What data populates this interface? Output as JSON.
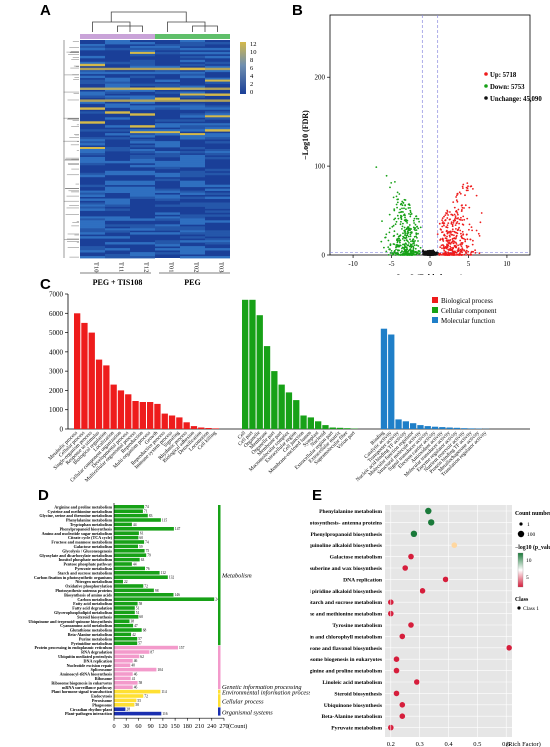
{
  "panel_labels": {
    "a": "A",
    "b": "B",
    "c": "C",
    "d": "D",
    "e": "E"
  },
  "colors": {
    "red": "#ee1c1c",
    "green": "#17a117",
    "blue": "#1f7fc8",
    "pink": "#f39acb",
    "yellow": "#ffe033",
    "navy": "#1a2fb0",
    "heat_low": "#1a3f98",
    "heat_mid": "#2f6fc0",
    "heat_high": "#d4b94a"
  },
  "heatmap": {
    "groups": [
      "PEG + TIS108",
      "PEG"
    ],
    "samples": [
      "T10",
      "T11",
      "T12",
      "T01",
      "T02",
      "T03"
    ],
    "colorbar_ticks": [
      "12",
      "10",
      "8",
      "6",
      "4",
      "2",
      "0"
    ]
  },
  "chart_data": [
    {
      "type": "scatter",
      "panel": "B",
      "xlabel": "Log2 (Fold change)",
      "ylabel": "−Log10 (FDR)",
      "xticks": [
        "-10",
        "-5",
        "0",
        "5",
        "10"
      ],
      "yticks": [
        "0",
        "100",
        "200"
      ],
      "xlim": [
        -13,
        13
      ],
      "ylim": [
        0,
        270
      ],
      "series": [
        {
          "name": "Up: 5718",
          "count": 5718
        },
        {
          "name": "Down: 5753",
          "count": 5753
        },
        {
          "name": "Unchange: 45,090",
          "count": 45090
        }
      ]
    },
    {
      "type": "bar",
      "panel": "C",
      "yticks": [
        "0",
        "1000",
        "2000",
        "3000",
        "4000",
        "5000",
        "6000",
        "7000"
      ],
      "ylim": [
        0,
        7000
      ],
      "series": [
        {
          "name": "Biological process",
          "categories": [
            "Metabolic process",
            "Cellular process",
            "Single-organism process",
            "Response to stimulus",
            "Biological regulation",
            "Localization",
            "Cellular component organization",
            "Developmental process",
            "Multicellular organismal process",
            "Reproduction",
            "Multi-organism process",
            "Growth",
            "Reproductive process",
            "Immune system process",
            "Signaling",
            "Rhythmic process",
            "Biological adhesion",
            "Detoxification",
            "Locomotion",
            "Cell killing"
          ],
          "values": [
            6000,
            5500,
            5000,
            3600,
            3300,
            2300,
            2000,
            1800,
            1450,
            1400,
            1400,
            1300,
            800,
            700,
            600,
            350,
            150,
            80,
            50,
            30
          ]
        },
        {
          "name": "Cellular component",
          "categories": [
            "Cell",
            "Cell part",
            "Organelle",
            "Membrane",
            "Organelle part",
            "Membrane part",
            "Macromolecular complex",
            "Extracellular region",
            "Cell junction",
            "Membrane-enclosed lumen",
            "Symplast",
            "Nucleoid",
            "Extracellular region part",
            "Extracellular matrix",
            "Supramolecular fiber",
            "Virion part"
          ],
          "values": [
            6700,
            6700,
            5900,
            4300,
            3000,
            2300,
            1900,
            1500,
            700,
            600,
            400,
            200,
            80,
            60,
            40,
            20
          ]
        },
        {
          "name": "Molecular function",
          "categories": [
            "Binding",
            "Catalytic activity",
            "Transporter activity",
            "Nucleic acid binding TF activity",
            "Molecular function regulator",
            "Structural molecule activity",
            "Signal transducer activity",
            "Electron carrier activity",
            "Antioxidant activity",
            "Molecular transducer activity",
            "Enzyme regulator activity",
            "Nutrient reservoir activity",
            "Protein binding TF activity",
            "Metallochaperone activity",
            "Translation regulator activity"
          ],
          "values": [
            5200,
            4900,
            500,
            400,
            300,
            200,
            150,
            120,
            100,
            80,
            60,
            40,
            30,
            20,
            10
          ]
        }
      ]
    },
    {
      "type": "bar",
      "panel": "D",
      "orientation": "horizontal",
      "xlabel": "(Count)",
      "xticks": [
        "0",
        "30",
        "60",
        "90",
        "120",
        "150",
        "180",
        "210",
        "240",
        "270"
      ],
      "xlim": [
        0,
        270
      ],
      "class_labels": [
        "Metabolism",
        "Genetic information processing",
        "Environmental information processing",
        "Cellular process",
        "Organismal systems"
      ],
      "rows": [
        {
          "label": "Arginine and proline metabolism",
          "value": 74,
          "class": 0
        },
        {
          "label": "Cysteine and methionine metabolism",
          "value": 71,
          "class": 0
        },
        {
          "label": "Glycine, serine and threonine metabolism",
          "value": 83,
          "class": 0
        },
        {
          "label": "Phenylalanine metabolism",
          "value": 115,
          "class": 0
        },
        {
          "label": "Tryptophan metabolism",
          "value": 44,
          "class": 0
        },
        {
          "label": "Phenylpropanoid biosynthesis",
          "value": 147,
          "class": 0
        },
        {
          "label": "Amino and nucleotide sugar metabolism",
          "value": 61,
          "class": 0
        },
        {
          "label": "Citrate cycle (TCA cycle)",
          "value": 60,
          "class": 0
        },
        {
          "label": "Fructose and mannose metabolism",
          "value": 74,
          "class": 0
        },
        {
          "label": "Galactose metabolism",
          "value": 59,
          "class": 0
        },
        {
          "label": "Glycolysis / Gluconeogenesis",
          "value": 75,
          "class": 0
        },
        {
          "label": "Glyoxylate and dicarboxylate metabolism",
          "value": 79,
          "class": 0
        },
        {
          "label": "Inositol phosphate metabolism",
          "value": 63,
          "class": 0
        },
        {
          "label": "Pentose phosphate pathway",
          "value": 44,
          "class": 0
        },
        {
          "label": "Pyruvate metabolism",
          "value": 76,
          "class": 0
        },
        {
          "label": "Starch and sucrose metabolism",
          "value": 112,
          "class": 0
        },
        {
          "label": "Carbon fixation in photosynthetic organisms",
          "value": 132,
          "class": 0
        },
        {
          "label": "Nitrogen metabolism",
          "value": 22,
          "class": 0
        },
        {
          "label": "Oxidative phosphorylation",
          "value": 72,
          "class": 0
        },
        {
          "label": "Photosynthesis-antenna proteins",
          "value": 98,
          "class": 0
        },
        {
          "label": "Biosynthesis of amino acids",
          "value": 146,
          "class": 0
        },
        {
          "label": "Carbon metabolism",
          "value": 246,
          "class": 0
        },
        {
          "label": "Fatty acid metabolism",
          "value": 58,
          "class": 0
        },
        {
          "label": "Fatty acid degradation",
          "value": 51,
          "class": 0
        },
        {
          "label": "Glycerophospholipid metabolism",
          "value": 51,
          "class": 0
        },
        {
          "label": "Steroid biosynthesis",
          "value": 60,
          "class": 0
        },
        {
          "label": "Ubiquinone and terpenoid-quinone biosynthesis",
          "value": 38,
          "class": 0
        },
        {
          "label": "Cyanoamino acid metabolism",
          "value": 47,
          "class": 0
        },
        {
          "label": "Glutathione metabolism",
          "value": 68,
          "class": 0
        },
        {
          "label": "Beta-Alanine metabolism",
          "value": 42,
          "class": 0
        },
        {
          "label": "Purine metabolism",
          "value": 57,
          "class": 0
        },
        {
          "label": "Pyrimidine metabolism",
          "value": 57,
          "class": 0
        },
        {
          "label": "Protein processing in endoplasmic reticulum",
          "value": 157,
          "class": 1
        },
        {
          "label": "RNA degradation",
          "value": 87,
          "class": 1
        },
        {
          "label": "Ubiquitin mediated proteolysis",
          "value": 62,
          "class": 1
        },
        {
          "label": "DNA replication",
          "value": 46,
          "class": 1
        },
        {
          "label": "Nucleotide excision repair",
          "value": 40,
          "class": 1
        },
        {
          "label": "Spliceosome",
          "value": 104,
          "class": 1
        },
        {
          "label": "Aminoacyl-tRNA biosynthesis",
          "value": 46,
          "class": 1
        },
        {
          "label": "Ribosome",
          "value": 41,
          "class": 1
        },
        {
          "label": "Ribosome biogenesis in eukaryotes",
          "value": 58,
          "class": 1
        },
        {
          "label": "mRNA surveillance pathway",
          "value": 46,
          "class": 1
        },
        {
          "label": "Plant hormone signal transduction",
          "value": 114,
          "class": 2
        },
        {
          "label": "Endocytosis",
          "value": 72,
          "class": 3
        },
        {
          "label": "Peroxisome",
          "value": 55,
          "class": 3
        },
        {
          "label": "Phagosome",
          "value": 50,
          "class": 3
        },
        {
          "label": "Circadian rhythm-plant",
          "value": 28,
          "class": 4
        },
        {
          "label": "Plant-pathogen interaction",
          "value": 116,
          "class": 4
        }
      ]
    },
    {
      "type": "scatter",
      "panel": "E",
      "xlabel": "(Rich Factor)",
      "xticks": [
        "0.2",
        "0.3",
        "0.4",
        "0.5",
        "0.6"
      ],
      "xlim": [
        0.18,
        0.62
      ],
      "legend_count_title": "Count number",
      "legend_count_items": [
        "1",
        "100"
      ],
      "legend_color_title": "−log10 (p_value)",
      "legend_color_ticks": [
        "10",
        "5"
      ],
      "legend_class_title": "Class",
      "legend_class_items": [
        "Class 1"
      ],
      "points": [
        {
          "label": "Phenylalanine metabolism",
          "x": 0.33,
          "neglogp": 18
        },
        {
          "label": "Photosynthesis- antenna proteins",
          "x": 0.34,
          "neglogp": 17
        },
        {
          "label": "Phenylpropanoid biosynthesis",
          "x": 0.28,
          "neglogp": 16
        },
        {
          "label": "Isoquinoline alkaloid biosynthesis",
          "x": 0.42,
          "neglogp": 4
        },
        {
          "label": "Galactose metabolism",
          "x": 0.27,
          "neglogp": 5
        },
        {
          "label": "Cutin,suberine and wax biosynthesis",
          "x": 0.25,
          "neglogp": 4
        },
        {
          "label": "DNA replication",
          "x": 0.39,
          "neglogp": 5
        },
        {
          "label": "Tropane,piperidine and piridine alkaloid biosynthesis",
          "x": 0.31,
          "neglogp": 4
        },
        {
          "label": "Starch and sucrose metabolism",
          "x": 0.2,
          "neglogp": 5
        },
        {
          "label": "Cysteine and methionine metabolism",
          "x": 0.2,
          "neglogp": 5
        },
        {
          "label": "Tyrosine metabolism",
          "x": 0.27,
          "neglogp": 5
        },
        {
          "label": "Porphyrin and chlorophyll metabolism",
          "x": 0.24,
          "neglogp": 5
        },
        {
          "label": "Flavone and flavonol biosynthesis",
          "x": 0.61,
          "neglogp": 5
        },
        {
          "label": "Ribosome biogenesis in eukaryotes",
          "x": 0.22,
          "neglogp": 5
        },
        {
          "label": "Arginine and proline metabolism",
          "x": 0.22,
          "neglogp": 5
        },
        {
          "label": "Linoleic acid metabolism",
          "x": 0.29,
          "neglogp": 5
        },
        {
          "label": "Steroid biosynthesis",
          "x": 0.22,
          "neglogp": 5
        },
        {
          "label": "Ubiquinone biosynthesis",
          "x": 0.24,
          "neglogp": 5
        },
        {
          "label": "Beta-Alanine metabolism",
          "x": 0.24,
          "neglogp": 5
        },
        {
          "label": "Pyruvate metabolism",
          "x": 0.2,
          "neglogp": 5
        }
      ]
    }
  ]
}
